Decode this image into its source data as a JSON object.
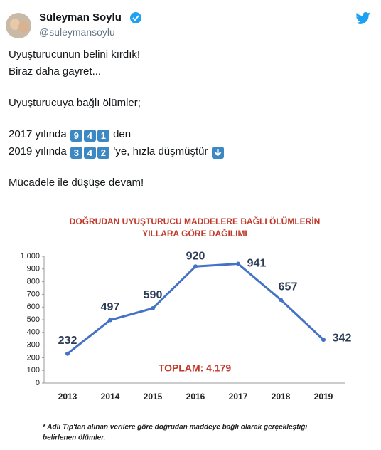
{
  "tweet": {
    "name": "Süleyman Soylu",
    "handle": "@suleymansoylu",
    "line1": "Uyuşturucunun belini kırdık!",
    "line2": "Biraz daha gayret...",
    "line3": "Uyuşturucuya bağlı ölümler;",
    "line4": {
      "prefix": "2017 yılında",
      "keys": [
        "9",
        "4",
        "1"
      ],
      "suffix": "den"
    },
    "line5": {
      "prefix": "2019 yılında",
      "keys": [
        "3",
        "4",
        "2"
      ],
      "suffix": "’ye, hızla düşmüştür"
    },
    "line6": "Mücadele ile düşüşe devam!"
  },
  "chart_data": {
    "type": "line",
    "title": [
      "DOĞRUDAN UYUŞTURUCU MADDELERE BAĞLI ÖLÜMLERİN",
      "YILLARA GÖRE DAĞILIMI"
    ],
    "categories": [
      "2013",
      "2014",
      "2015",
      "2016",
      "2017",
      "2018",
      "2019"
    ],
    "values": [
      232,
      497,
      590,
      920,
      941,
      657,
      342
    ],
    "color": "#4472c4",
    "ylim": [
      0,
      1000
    ],
    "yticks": [
      0,
      100,
      200,
      300,
      400,
      500,
      600,
      700,
      800,
      900,
      {
        "value": 1000,
        "label": "1.000"
      }
    ],
    "annotation": "TOPLAM: 4.179",
    "footnote": [
      "* Adli Tıp'tan alınan verilere göre doğrudan maddeye bağlı olarak gerçekleştiği",
      "belirlenen ölümler."
    ]
  }
}
